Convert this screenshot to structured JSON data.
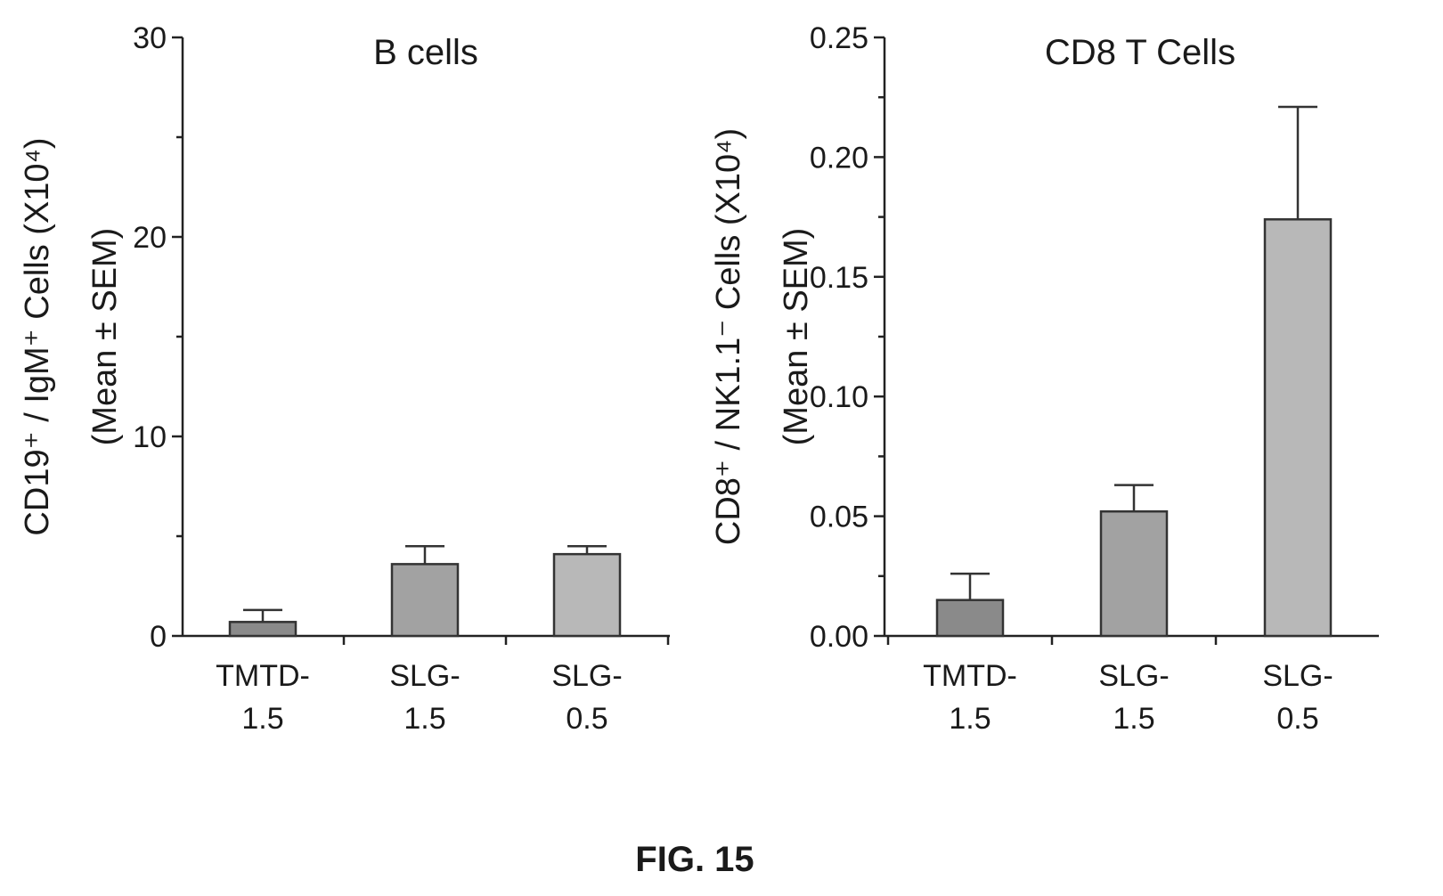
{
  "figure_caption": "FIG. 15",
  "chart_data": [
    {
      "type": "bar",
      "title": "B cells",
      "ylabel_line1": "CD19⁺ / IgM⁺ Cells (X10⁴)",
      "ylabel_line2": "(Mean ± SEM)",
      "categories": [
        {
          "line1": "TMTD-",
          "line2": "1.5"
        },
        {
          "line1": "SLG-",
          "line2": "1.5"
        },
        {
          "line1": "SLG-",
          "line2": "0.5"
        }
      ],
      "values": [
        0.7,
        3.6,
        4.1
      ],
      "errors": [
        0.6,
        0.9,
        0.4
      ],
      "ylim": [
        0,
        30
      ],
      "yticks": [
        0,
        10,
        20,
        30
      ],
      "ytick_labels": [
        "0",
        "10",
        "20",
        "30"
      ],
      "bar_colors": [
        "#8a8a8a",
        "#a2a2a2",
        "#b8b8b8"
      ]
    },
    {
      "type": "bar",
      "title": "CD8 T Cells",
      "ylabel_line1": "CD8⁺ / NK1.1⁻ Cells (X10⁴)",
      "ylabel_line2": "(Mean ± SEM)",
      "categories": [
        {
          "line1": "TMTD-",
          "line2": "1.5"
        },
        {
          "line1": "SLG-",
          "line2": "1.5"
        },
        {
          "line1": "SLG-",
          "line2": "0.5"
        }
      ],
      "values": [
        0.015,
        0.052,
        0.174
      ],
      "errors": [
        0.011,
        0.011,
        0.047
      ],
      "ylim": [
        0,
        0.25
      ],
      "yticks": [
        0,
        0.05,
        0.1,
        0.15,
        0.2,
        0.25
      ],
      "ytick_labels": [
        "0.00",
        "0.05",
        "0.10",
        "0.15",
        "0.20",
        "0.25"
      ],
      "bar_colors": [
        "#8a8a8a",
        "#a2a2a2",
        "#b8b8b8"
      ]
    }
  ]
}
